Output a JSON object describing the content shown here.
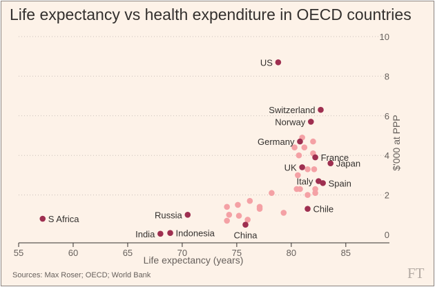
{
  "chart_data": {
    "type": "scatter",
    "title": "Life expectancy vs health expenditure in OECD countries",
    "xlabel": "Life expectancy (years)",
    "ylabel": "$'000 at PPP",
    "xlim": [
      55,
      89
    ],
    "ylim": [
      0,
      10
    ],
    "xticks": [
      55,
      60,
      65,
      70,
      75,
      80,
      85
    ],
    "yticks": [
      0,
      2,
      4,
      6,
      8,
      10
    ],
    "grid": "horizontal dotted",
    "highlight_color": "#9e2f50",
    "other_color": "#f4a1a5",
    "points": [
      {
        "label": "US",
        "x": 78.8,
        "y": 8.7,
        "highlight": true,
        "label_side": "left"
      },
      {
        "label": "Switzerland",
        "x": 82.7,
        "y": 6.3,
        "highlight": true,
        "label_side": "left"
      },
      {
        "label": "Norway",
        "x": 81.8,
        "y": 5.7,
        "highlight": true,
        "label_side": "left"
      },
      {
        "label": "Germany",
        "x": 80.8,
        "y": 4.7,
        "highlight": true,
        "label_side": "left"
      },
      {
        "label": "France",
        "x": 82.2,
        "y": 3.9,
        "highlight": true,
        "label_side": "right"
      },
      {
        "label": "UK",
        "x": 81.0,
        "y": 3.4,
        "highlight": true,
        "label_side": "left"
      },
      {
        "label": "Japan",
        "x": 83.6,
        "y": 3.6,
        "highlight": true,
        "label_side": "right"
      },
      {
        "label": "Italy",
        "x": 82.5,
        "y": 2.7,
        "highlight": true,
        "label_side": "left"
      },
      {
        "label": "Spain",
        "x": 82.9,
        "y": 2.6,
        "highlight": true,
        "label_side": "right"
      },
      {
        "label": "Chile",
        "x": 81.5,
        "y": 1.3,
        "highlight": true,
        "label_side": "right"
      },
      {
        "label": "Russia",
        "x": 70.5,
        "y": 1.0,
        "highlight": true,
        "label_side": "left"
      },
      {
        "label": "S Africa",
        "x": 57.2,
        "y": 0.8,
        "highlight": true,
        "label_side": "right"
      },
      {
        "label": "India",
        "x": 68.0,
        "y": 0.04,
        "highlight": true,
        "label_side": "left"
      },
      {
        "label": "Indonesia",
        "x": 68.9,
        "y": 0.08,
        "highlight": true,
        "label_side": "right"
      },
      {
        "label": "China",
        "x": 75.8,
        "y": 0.5,
        "highlight": true,
        "label_side": "below"
      },
      {
        "x": 81.0,
        "y": 4.9
      },
      {
        "x": 80.3,
        "y": 4.4
      },
      {
        "x": 81.2,
        "y": 4.4
      },
      {
        "x": 82.0,
        "y": 4.7
      },
      {
        "x": 80.7,
        "y": 4.0
      },
      {
        "x": 82.0,
        "y": 4.1
      },
      {
        "x": 81.5,
        "y": 3.3
      },
      {
        "x": 80.6,
        "y": 3.0
      },
      {
        "x": 82.1,
        "y": 3.3
      },
      {
        "x": 80.5,
        "y": 2.3
      },
      {
        "x": 80.8,
        "y": 2.3
      },
      {
        "x": 81.5,
        "y": 2.0
      },
      {
        "x": 82.2,
        "y": 2.3
      },
      {
        "x": 82.2,
        "y": 2.1
      },
      {
        "x": 78.2,
        "y": 2.1
      },
      {
        "x": 77.1,
        "y": 1.4
      },
      {
        "x": 77.1,
        "y": 1.3
      },
      {
        "x": 76.2,
        "y": 1.7
      },
      {
        "x": 75.1,
        "y": 1.5
      },
      {
        "x": 74.1,
        "y": 1.4
      },
      {
        "x": 74.3,
        "y": 1.0
      },
      {
        "x": 74.1,
        "y": 0.7
      },
      {
        "x": 75.2,
        "y": 0.95
      },
      {
        "x": 76.0,
        "y": 0.75
      },
      {
        "x": 79.3,
        "y": 1.1
      }
    ]
  },
  "source_text": "Sources: Max Roser; OECD; World Bank",
  "logo_text": "FT"
}
